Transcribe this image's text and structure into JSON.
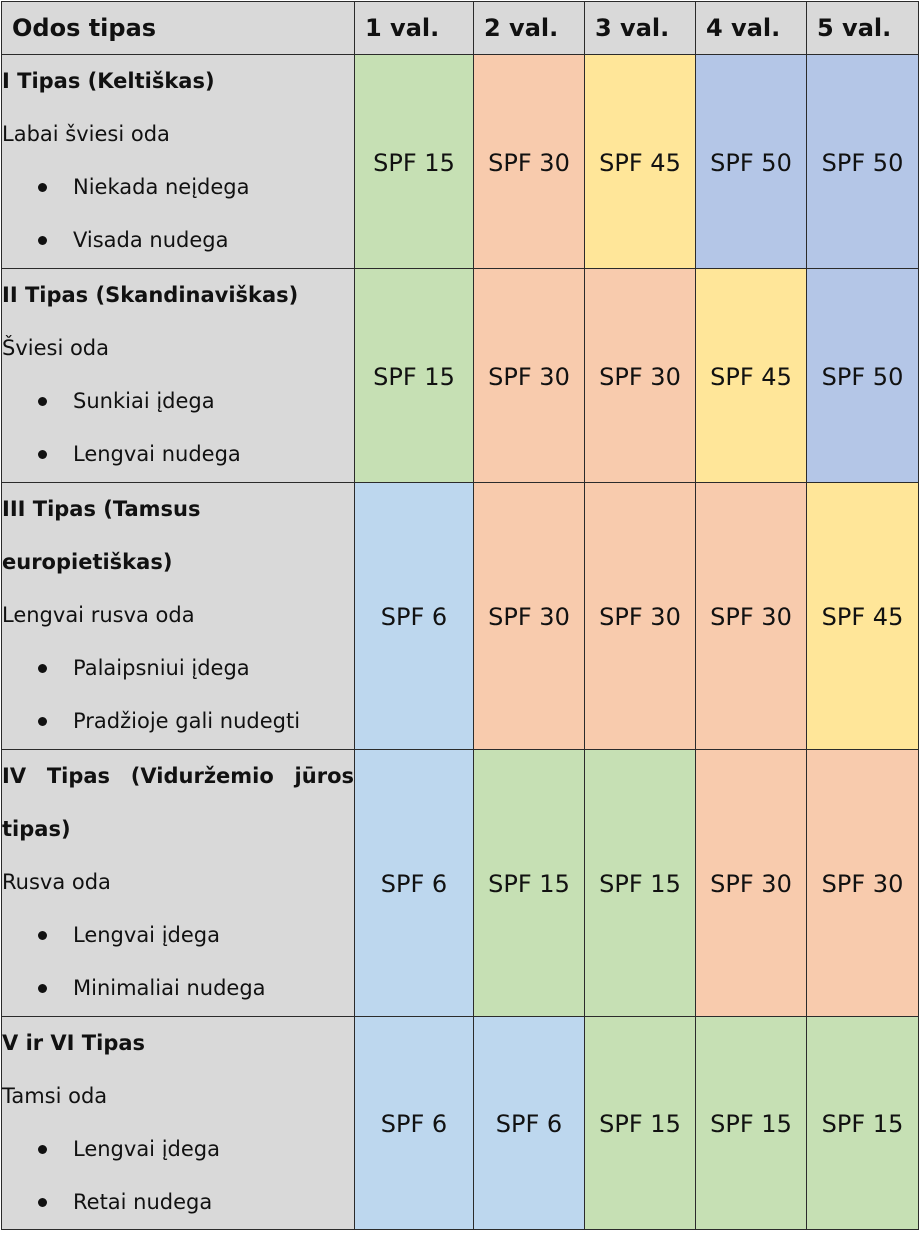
{
  "header": {
    "type_col": "Odos tipas",
    "hours": [
      "1 val.",
      "2 val.",
      "3 val.",
      "4 val.",
      "5 val."
    ]
  },
  "colors": {
    "header_bg": "#d9d9d9",
    "green": "#c6e0b4",
    "orange": "#f8cbad",
    "yellow": "#ffe699",
    "blue": "#b4c6e7",
    "light_blue": "#bdd7ee"
  },
  "rows": [
    {
      "title": "I Tipas (Keltiškas)",
      "skin": "Labai šviesi oda",
      "traits": [
        "Niekada neįdega",
        "Visada nudega"
      ],
      "spf": [
        {
          "value": "SPF 15",
          "color": "green"
        },
        {
          "value": "SPF 30",
          "color": "orange"
        },
        {
          "value": "SPF 45",
          "color": "yellow"
        },
        {
          "value": "SPF 50",
          "color": "blue"
        },
        {
          "value": "SPF 50",
          "color": "blue"
        }
      ]
    },
    {
      "title": "II Tipas (Skandinaviškas)",
      "skin": "Šviesi oda",
      "traits": [
        "Sunkiai įdega",
        "Lengvai nudega"
      ],
      "spf": [
        {
          "value": "SPF 15",
          "color": "green"
        },
        {
          "value": "SPF 30",
          "color": "orange"
        },
        {
          "value": "SPF 30",
          "color": "orange"
        },
        {
          "value": "SPF 45",
          "color": "yellow"
        },
        {
          "value": "SPF 50",
          "color": "blue"
        }
      ]
    },
    {
      "title": "III Tipas (Tamsus europietiškas)",
      "skin": "Lengvai rusva oda",
      "traits": [
        "Palaipsniui įdega",
        "Pradžioje gali nudegti"
      ],
      "spf": [
        {
          "value": "SPF 6",
          "color": "light_blue"
        },
        {
          "value": "SPF 30",
          "color": "orange"
        },
        {
          "value": "SPF 30",
          "color": "orange"
        },
        {
          "value": "SPF 30",
          "color": "orange"
        },
        {
          "value": "SPF 45",
          "color": "yellow"
        }
      ]
    },
    {
      "title": "IV Tipas (Viduržemio jūros tipas)",
      "skin": "Rusva oda",
      "traits": [
        "Lengvai įdega",
        "Minimaliai nudega"
      ],
      "spf": [
        {
          "value": "SPF 6",
          "color": "light_blue"
        },
        {
          "value": "SPF 15",
          "color": "green"
        },
        {
          "value": "SPF 15",
          "color": "green"
        },
        {
          "value": "SPF 30",
          "color": "orange"
        },
        {
          "value": "SPF 30",
          "color": "orange"
        }
      ]
    },
    {
      "title": "V ir VI Tipas",
      "skin": "Tamsi oda",
      "traits": [
        "Lengvai įdega",
        "Retai nudega"
      ],
      "spf": [
        {
          "value": "SPF 6",
          "color": "light_blue"
        },
        {
          "value": "SPF 6",
          "color": "light_blue"
        },
        {
          "value": "SPF 15",
          "color": "green"
        },
        {
          "value": "SPF 15",
          "color": "green"
        },
        {
          "value": "SPF 15",
          "color": "green"
        }
      ]
    }
  ]
}
